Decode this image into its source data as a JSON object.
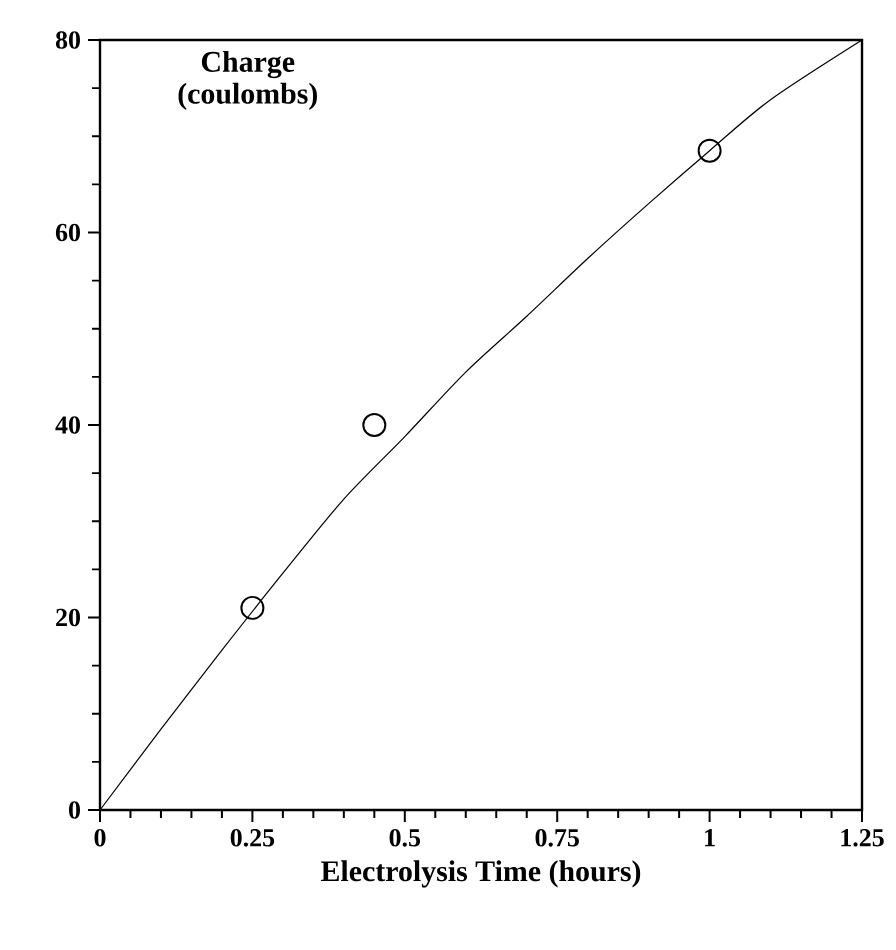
{
  "chart_data": {
    "type": "scatter",
    "xlabel": "Electrolysis Time (hours)",
    "ylabel": "Charge (coulombs)",
    "xlim": [
      0,
      1.25
    ],
    "xticks": [
      0,
      0.25,
      0.5,
      0.75,
      1,
      1.25
    ],
    "ylim": [
      0,
      80
    ],
    "yticks": [
      0,
      20,
      40,
      60,
      80
    ],
    "grid": false,
    "series": [
      {
        "marker": "circle",
        "color": "#000000",
        "x": [
          0.25,
          0.45,
          1.0
        ],
        "values": [
          21,
          40,
          68.5
        ]
      },
      {
        "type": "line",
        "marker": "none",
        "line_style": "solid",
        "color": "#000000",
        "x": [
          0,
          0.1,
          0.2,
          0.3,
          0.4,
          0.5,
          0.6,
          0.7,
          0.8,
          0.9,
          1.0,
          1.1,
          1.25
        ],
        "values": [
          0,
          8.4,
          16.6,
          24.6,
          32.3,
          38.8,
          45.5,
          51.3,
          57.3,
          63.0,
          68.5,
          73.8,
          80
        ]
      }
    ]
  }
}
